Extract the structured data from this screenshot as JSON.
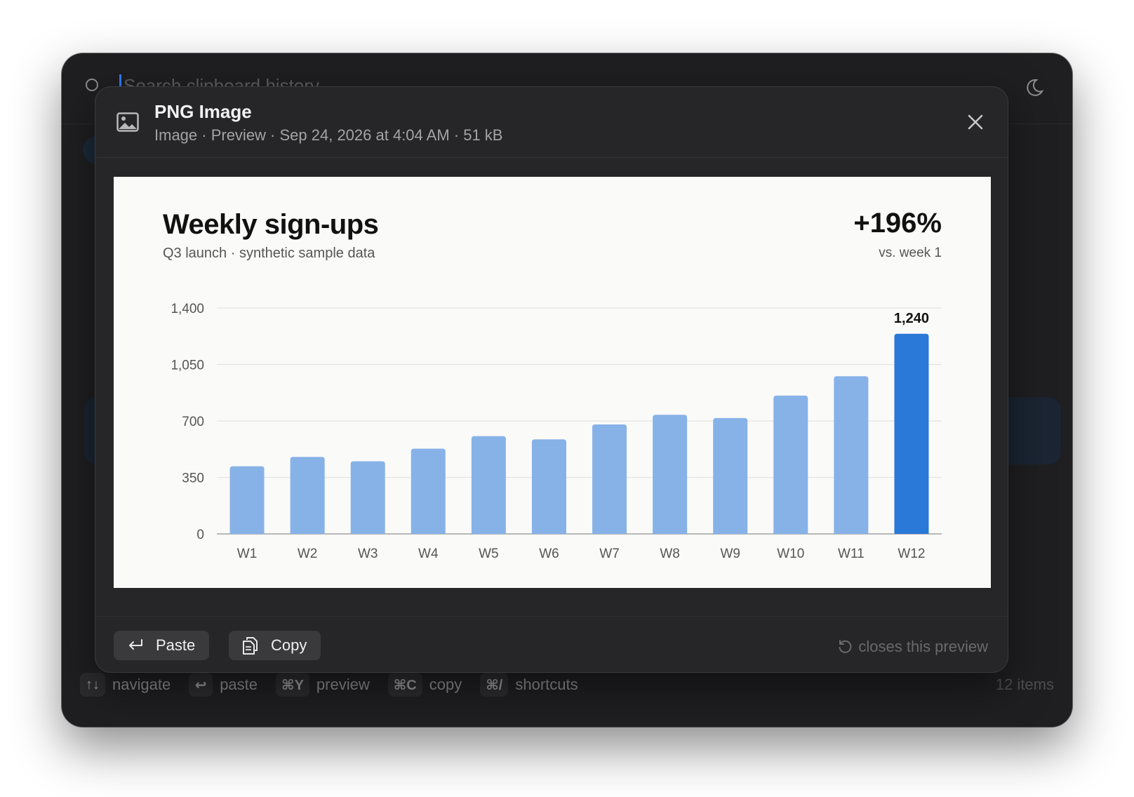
{
  "search": {
    "placeholder": "Search clipboard history"
  },
  "preview": {
    "title": "PNG Image",
    "meta": "Image · Preview · Sep 24, 2026 at 4:04 AM · 51 kB",
    "actions": {
      "paste_label": "Paste",
      "copy_label": "Copy"
    },
    "close_note": "closes this preview"
  },
  "footer": {
    "hints": [
      {
        "key": "↑↓",
        "label": "navigate"
      },
      {
        "key": "↩",
        "label": "paste"
      },
      {
        "key": "⌘Y",
        "label": "preview"
      },
      {
        "key": "⌘C",
        "label": "copy"
      },
      {
        "key": "⌘/",
        "label": "shortcuts"
      }
    ],
    "count": "12 items"
  },
  "icons": {
    "search": "search-icon",
    "theme": "moon-icon",
    "image": "image-icon",
    "close": "close-icon",
    "paste": "return-arrow-icon",
    "copy": "copy-icon",
    "undo": "undo-icon"
  },
  "colors": {
    "accent": "#2f7cf6",
    "bar": "#87b2e8",
    "bar_highlight": "#2a78d8",
    "window_bg": "#1f1f21",
    "modal_bg": "#262628"
  },
  "chart_data": {
    "type": "bar",
    "title": "Weekly sign-ups",
    "subtitle": "Q3 launch · synthetic sample data",
    "headline_value": "+196%",
    "headline_note": "vs. week 1",
    "categories": [
      "W1",
      "W2",
      "W3",
      "W4",
      "W5",
      "W6",
      "W7",
      "W8",
      "W9",
      "W10",
      "W11",
      "W12"
    ],
    "values": [
      419,
      477,
      450,
      528,
      606,
      586,
      678,
      738,
      718,
      857,
      977,
      1240
    ],
    "highlight_index": 11,
    "value_labels": {
      "11": "1,240"
    },
    "ylim": [
      0,
      1400
    ],
    "yticks": [
      {
        "value": 0,
        "label": "0"
      },
      {
        "value": 350,
        "label": "350"
      },
      {
        "value": 700,
        "label": "700"
      },
      {
        "value": 1050,
        "label": "1,050"
      },
      {
        "value": 1400,
        "label": "1,400"
      }
    ],
    "grid": true,
    "legend": "none"
  }
}
